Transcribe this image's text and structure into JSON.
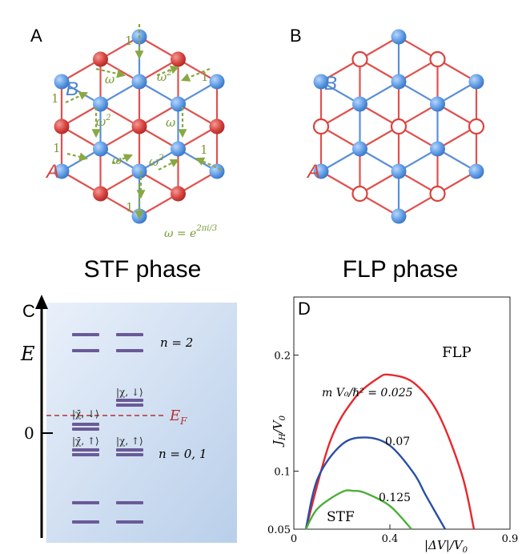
{
  "panels": {
    "A": {
      "letter": "A",
      "phase": "STF phase",
      "sub_a": "A",
      "sub_b": "B",
      "phase_labels": [
        "1",
        "ω",
        "ω",
        "ω",
        "ω",
        "1",
        "1",
        "1",
        "1",
        "1"
      ],
      "phase_labels_sq": [
        "ω",
        "ω",
        "ω",
        "ω"
      ],
      "sq": "2",
      "omega_eq": "ω = e",
      "omega_exp": "2πi/3"
    },
    "B": {
      "letter": "B",
      "phase": "FLP phase",
      "sub_a": "A",
      "sub_b": "B"
    },
    "C": {
      "letter": "C",
      "axis_label": "E",
      "zero": "0",
      "n2": "n = 2",
      "n01": "n = 0, 1",
      "ef": "E",
      "ef_sub": "F",
      "kets": [
        "|χ̄, ↓⟩",
        "|χ̄, ↑⟩",
        "|χ, ↓⟩",
        "|χ, ↑⟩"
      ]
    },
    "D": {
      "letter": "D",
      "region_top": "FLP",
      "region_bottom": "STF",
      "ylabel_main": "J",
      "ylabel_sub": "H",
      "ylabel_rest": "/V",
      "ylabel_zero": "0",
      "xlabel": "|ΔV|/V",
      "xlabel_zero": "0",
      "param_label": "m V₀/ℏ² = 0.025",
      "series_labels": [
        "0.07",
        "0.125"
      ]
    }
  },
  "chart_data": {
    "type": "line",
    "xlabel": "|ΔV|/V0",
    "ylabel": "JH/V0",
    "xlim": [
      0,
      0.9
    ],
    "ylim": [
      0.05,
      0.25
    ],
    "x_ticks": [
      "0",
      "0.4",
      "0.9"
    ],
    "y_ticks": [
      "0.05",
      "0.1",
      "0.2"
    ],
    "series": [
      {
        "name": "0.025",
        "color": "#e8262d",
        "x": [
          0.05,
          0.15,
          0.25,
          0.35,
          0.4,
          0.5,
          0.6,
          0.7,
          0.75
        ],
        "y": [
          0.05,
          0.125,
          0.162,
          0.18,
          0.183,
          0.176,
          0.15,
          0.097,
          0.05
        ]
      },
      {
        "name": "0.07",
        "color": "#2a4fa5",
        "x": [
          0.05,
          0.1,
          0.2,
          0.3,
          0.4,
          0.5,
          0.55,
          0.63
        ],
        "y": [
          0.05,
          0.094,
          0.123,
          0.129,
          0.122,
          0.098,
          0.079,
          0.05
        ]
      },
      {
        "name": "0.125",
        "color": "#4caf3a",
        "x": [
          0.05,
          0.1,
          0.2,
          0.25,
          0.3,
          0.4,
          0.49
        ],
        "y": [
          0.05,
          0.068,
          0.082,
          0.083,
          0.081,
          0.07,
          0.05
        ]
      }
    ]
  },
  "colors": {
    "blue_edge": "#5b8fd6",
    "red_edge": "#e0514e",
    "blue_node": "#5f9ce6",
    "red_node": "#d9443f",
    "green_arrow": "#89a840",
    "level_purple": "#6a5a98"
  }
}
